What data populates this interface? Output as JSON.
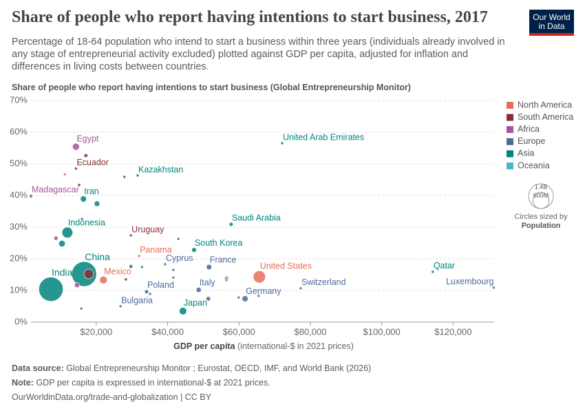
{
  "logo": [
    "Our World",
    "in Data"
  ],
  "footer": {
    "source_label": "Data source:",
    "source": "Global Entrepreneurship Monitor ; Eurostat, OECD, IMF, and World Bank (2026)",
    "note_label": "Note:",
    "note": "GDP per capita is expressed in international-$ at 2021 prices.",
    "url": "OurWorldinData.org/trade-and-globalization | CC BY"
  },
  "chart_data": {
    "type": "scatter",
    "title": "Share of people who report having intentions to start business, 2017",
    "subtitle": "Percentage of 18-64 population who intend to start a business within three years (individuals already involved in any stage of entrepreneurial activity excluded) plotted against GDP per capita, adjusted for inflation and differences in living costs between countries.",
    "y_label": "Share of people who report having intentions to start business (Global Entrepreneurship Monitor)",
    "x_label": "GDP per capita",
    "x_label_unit": "(international-$ in 2021 prices)",
    "xlim": [
      1700,
      131500
    ],
    "xticks": [
      {
        "value": 20000,
        "label": "$20,000"
      },
      {
        "value": 40000,
        "label": "$40,000"
      },
      {
        "value": 60000,
        "label": "$60,000"
      },
      {
        "value": 80000,
        "label": "$80,000"
      },
      {
        "value": 100000,
        "label": "$100,000"
      },
      {
        "value": 120000,
        "label": "$120,000"
      }
    ],
    "ylim": [
      0,
      70
    ],
    "yticks": [
      {
        "value": 0,
        "label": "0%"
      },
      {
        "value": 10,
        "label": "10%"
      },
      {
        "value": 20,
        "label": "20%"
      },
      {
        "value": 30,
        "label": "30%"
      },
      {
        "value": 40,
        "label": "40%"
      },
      {
        "value": 50,
        "label": "50%"
      },
      {
        "value": 60,
        "label": "60%"
      },
      {
        "value": 70,
        "label": "70%"
      }
    ],
    "grid": true,
    "legend": "right",
    "size_title": "Circles sized by",
    "size_variable": "Population",
    "size_legend": [
      {
        "value": 1400000000,
        "label": "1.4B"
      },
      {
        "value": 600000000,
        "label": "600M"
      }
    ],
    "series": [
      {
        "name": "North America",
        "color": "#e56e5a",
        "x": [
          65700,
          22000,
          32000,
          56500,
          11200
        ],
        "values": [
          14.3,
          13.3,
          20.9,
          13.9,
          46.7
        ],
        "sizes": [
          340000000,
          130000000,
          4000000,
          38000000,
          10000000
        ],
        "labels": [
          "United States",
          "Mexico",
          "Panama",
          null,
          null
        ]
      },
      {
        "name": "South America",
        "color": "#883039",
        "x": [
          14300,
          29700,
          17100,
          15200,
          27900,
          17900,
          28300
        ],
        "values": [
          48.5,
          27.4,
          52.6,
          43.3,
          45.9,
          15.2,
          13.5
        ],
        "sizes": [
          18000000,
          3500000,
          33000000,
          20000000,
          3000000,
          210000000,
          19000000
        ],
        "labels": [
          "Ecuador",
          "Uruguay",
          null,
          null,
          null,
          null,
          null
        ]
      },
      {
        "name": "Africa",
        "color": "#a2559c",
        "x": [
          14300,
          1700,
          8700,
          14600
        ],
        "values": [
          55.4,
          39.8,
          26.5,
          11.7
        ],
        "sizes": [
          110000000,
          28000000,
          40000000,
          60000000
        ],
        "labels": [
          "Egypt",
          "Madagascar",
          null,
          null
        ]
      },
      {
        "name": "Europe",
        "color": "#4c6a9c",
        "x": [
          34100,
          26800,
          39300,
          51600,
          48700,
          61700,
          77300,
          131400,
          35100,
          41600,
          41600,
          51400,
          59900,
          65500,
          15800,
          32800
        ],
        "values": [
          9.6,
          5.0,
          18.3,
          17.4,
          10.2,
          7.4,
          10.7,
          10.9,
          8.9,
          16.5,
          14.1,
          7.4,
          7.8,
          8.3,
          4.3,
          17.4
        ],
        "sizes": [
          38000000,
          7000000,
          1000000,
          66000000,
          60000000,
          83000000,
          8500000,
          600000,
          10000000,
          5000000,
          10000000,
          47000000,
          5000000,
          5000000,
          3000000,
          5000000
        ],
        "labels": [
          "Poland",
          "Bulgaria",
          "Cyprus",
          "France",
          "Italy",
          "Germany",
          "Switzerland",
          "Luxembourg",
          null,
          null,
          null,
          null,
          null,
          null,
          null,
          null
        ]
      },
      {
        "name": "Asia",
        "color": "#00847e",
        "x": [
          16600,
          7300,
          11900,
          16400,
          31600,
          72100,
          57800,
          47400,
          44300,
          114300,
          20200,
          10400,
          16000,
          29700,
          43000
        ],
        "values": [
          15.2,
          10.4,
          28.3,
          38.9,
          46.3,
          56.5,
          30.9,
          22.8,
          3.5,
          15.9,
          37.4,
          24.8,
          32.6,
          17.6,
          26.3
        ],
        "sizes": [
          1400000000,
          1340000000,
          265000000,
          83000000,
          18000000,
          9000000,
          34000000,
          51000000,
          125000000,
          2800000,
          70000000,
          96000000,
          10000000,
          32000000,
          9000000
        ],
        "labels": [
          "China",
          "India",
          "Indonesia",
          "Iran",
          "Kazakhstan",
          "United Arab Emirates",
          "Saudi Arabia",
          "South Korea",
          "Japan",
          "Qatar",
          null,
          null,
          null,
          null,
          null
        ]
      },
      {
        "name": "Oceania",
        "color": "#4cb8c0",
        "x": [
          56500
        ],
        "values": [
          13.3
        ],
        "sizes": [
          25000000
        ],
        "labels": [
          null
        ]
      }
    ]
  }
}
